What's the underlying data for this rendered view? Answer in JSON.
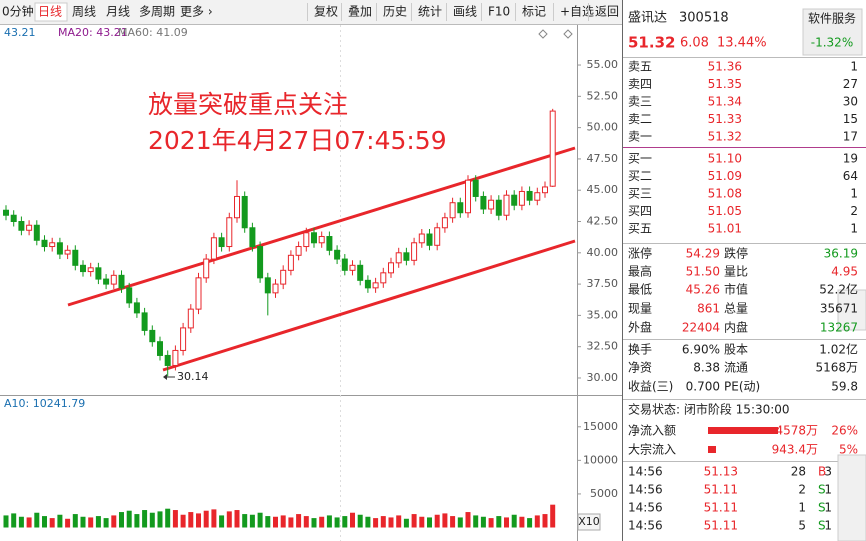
{
  "toolbar": {
    "left": [
      "0分钟",
      "日线",
      "周线",
      "月线",
      "多周期",
      "更多 ›"
    ],
    "right": [
      "复权",
      "叠加",
      "历史",
      "统计",
      "画线",
      "F10",
      "标记",
      "+自选",
      "返回"
    ]
  },
  "kline": {
    "ma_legend": [
      "43.21",
      "MA20: 43.21",
      "MA60: 41.09"
    ],
    "annotation": [
      "放量突破重点关注",
      "2021年4月27日07:45:59"
    ],
    "low_label": "30.14",
    "ylim": [
      28.88,
      56.6
    ],
    "yticks": [
      {
        "value": 55,
        "label": "55.00"
      },
      {
        "value": 52.5,
        "label": "52.50"
      },
      {
        "value": 50,
        "label": "50.00"
      },
      {
        "value": 47.5,
        "label": "47.50"
      },
      {
        "value": 45,
        "label": "45.00"
      },
      {
        "value": 42.5,
        "label": "42.50"
      },
      {
        "value": 40,
        "label": "40.00"
      },
      {
        "value": 37.5,
        "label": "37.50"
      },
      {
        "value": 35,
        "label": "35.00"
      },
      {
        "value": 32.5,
        "label": "32.50"
      },
      {
        "value": 30,
        "label": "30.00"
      }
    ],
    "candles": [
      [
        43.4,
        43.8,
        42.6,
        43.0
      ],
      [
        43.0,
        43.4,
        42.1,
        42.5
      ],
      [
        42.5,
        42.9,
        41.4,
        41.8
      ],
      [
        41.8,
        42.6,
        41.4,
        42.2
      ],
      [
        42.2,
        42.6,
        40.6,
        41.0
      ],
      [
        41.0,
        41.4,
        40.1,
        40.5
      ],
      [
        40.5,
        41.2,
        40.1,
        40.8
      ],
      [
        40.8,
        41.2,
        39.5,
        39.9
      ],
      [
        39.9,
        40.6,
        39.5,
        40.2
      ],
      [
        40.2,
        40.6,
        38.6,
        39.0
      ],
      [
        39.0,
        39.4,
        38.1,
        38.5
      ],
      [
        38.5,
        39.2,
        38.1,
        38.8
      ],
      [
        38.8,
        39.2,
        37.5,
        37.9
      ],
      [
        37.9,
        38.3,
        37.1,
        37.5
      ],
      [
        37.5,
        38.6,
        37.1,
        38.2
      ],
      [
        38.2,
        38.6,
        36.8,
        37.2
      ],
      [
        37.2,
        37.6,
        35.6,
        36.0
      ],
      [
        36.0,
        36.4,
        34.8,
        35.2
      ],
      [
        35.2,
        35.6,
        33.4,
        33.8
      ],
      [
        33.8,
        34.2,
        32.5,
        32.9
      ],
      [
        32.9,
        33.3,
        31.4,
        31.8
      ],
      [
        31.8,
        32.2,
        30.14,
        31.0
      ],
      [
        31.0,
        32.6,
        30.6,
        32.2
      ],
      [
        32.2,
        34.4,
        31.8,
        34.0
      ],
      [
        34.0,
        35.9,
        33.6,
        35.5
      ],
      [
        35.5,
        38.4,
        35.1,
        38.0
      ],
      [
        38.0,
        39.9,
        37.6,
        39.5
      ],
      [
        39.5,
        41.6,
        39.1,
        41.2
      ],
      [
        41.2,
        41.6,
        40.1,
        40.5
      ],
      [
        40.5,
        43.2,
        40.1,
        42.8
      ],
      [
        42.8,
        45.8,
        42.4,
        44.5
      ],
      [
        44.5,
        44.9,
        41.6,
        42.0
      ],
      [
        42.0,
        42.4,
        40.1,
        40.5
      ],
      [
        40.5,
        40.9,
        37.6,
        38.0
      ],
      [
        38.0,
        38.4,
        35.0,
        36.8
      ],
      [
        36.8,
        37.9,
        36.4,
        37.5
      ],
      [
        37.5,
        39.0,
        37.1,
        38.6
      ],
      [
        38.6,
        40.2,
        38.2,
        39.8
      ],
      [
        39.8,
        40.9,
        39.4,
        40.5
      ],
      [
        40.5,
        42.0,
        40.1,
        41.6
      ],
      [
        41.6,
        42.0,
        40.4,
        40.8
      ],
      [
        40.8,
        41.7,
        40.4,
        41.3
      ],
      [
        41.3,
        41.7,
        39.8,
        40.2
      ],
      [
        40.2,
        40.6,
        39.1,
        39.5
      ],
      [
        39.5,
        39.9,
        38.2,
        38.6
      ],
      [
        38.6,
        39.4,
        38.2,
        39.0
      ],
      [
        39.0,
        39.4,
        37.4,
        37.8
      ],
      [
        37.8,
        38.2,
        36.8,
        37.2
      ],
      [
        37.2,
        38.0,
        36.8,
        37.6
      ],
      [
        37.6,
        38.8,
        37.2,
        38.4
      ],
      [
        38.4,
        39.6,
        38.0,
        39.2
      ],
      [
        39.2,
        40.4,
        38.8,
        40.0
      ],
      [
        40.0,
        40.4,
        39.0,
        39.4
      ],
      [
        39.4,
        41.2,
        39.0,
        40.8
      ],
      [
        40.8,
        41.9,
        40.4,
        41.5
      ],
      [
        41.5,
        41.9,
        40.2,
        40.6
      ],
      [
        40.6,
        42.4,
        40.2,
        42.0
      ],
      [
        42.0,
        43.2,
        41.6,
        42.8
      ],
      [
        42.8,
        44.4,
        42.4,
        44.0
      ],
      [
        44.0,
        44.4,
        42.8,
        43.2
      ],
      [
        43.2,
        46.2,
        42.8,
        45.8
      ],
      [
        45.8,
        46.2,
        44.1,
        44.5
      ],
      [
        44.5,
        44.9,
        43.1,
        43.5
      ],
      [
        43.5,
        44.6,
        43.1,
        44.2
      ],
      [
        44.2,
        44.6,
        42.6,
        43.0
      ],
      [
        43.0,
        45.0,
        42.6,
        44.6
      ],
      [
        44.6,
        45.0,
        43.4,
        43.8
      ],
      [
        43.8,
        45.3,
        43.4,
        44.9
      ],
      [
        44.9,
        45.3,
        43.8,
        44.2
      ],
      [
        44.2,
        45.2,
        43.8,
        44.8
      ],
      [
        44.8,
        45.7,
        44.4,
        45.26
      ],
      [
        45.32,
        51.5,
        45.26,
        51.32
      ]
    ],
    "volume_legend": "A10: 10241.79",
    "vol_ylim": [
      0,
      17500
    ],
    "vol_yticks": [
      15000,
      10000,
      5000
    ],
    "vol_unit": "X10",
    "volumes": [
      1800,
      2100,
      1600,
      1500,
      2200,
      1700,
      1400,
      1900,
      1300,
      2000,
      1600,
      1500,
      1700,
      1400,
      1800,
      2300,
      2500,
      2000,
      2600,
      2200,
      2400,
      2800,
      2600,
      1900,
      2300,
      2100,
      2500,
      2700,
      1800,
      2400,
      2600,
      2000,
      1900,
      2200,
      1700,
      1600,
      1800,
      1500,
      2000,
      1700,
      1400,
      1600,
      1800,
      1500,
      1700,
      2200,
      1900,
      1600,
      1400,
      1700,
      1500,
      1800,
      1300,
      2000,
      1600,
      1500,
      1900,
      2100,
      1700,
      1500,
      2300,
      1800,
      1600,
      1400,
      1700,
      1500,
      1900,
      1600,
      1400,
      1800,
      2000,
      3400
    ]
  },
  "quote": {
    "name": "盛讯达",
    "code": "300518",
    "sector": "软件服务",
    "sector_change": "-1.32%",
    "price": "51.32",
    "change": "6.08",
    "change_pct": "13.44%",
    "sells": [
      [
        "卖五",
        "51.36",
        "1"
      ],
      [
        "卖四",
        "51.35",
        "27"
      ],
      [
        "卖三",
        "51.34",
        "30"
      ],
      [
        "卖二",
        "51.33",
        "15"
      ],
      [
        "卖一",
        "51.32",
        "17"
      ]
    ],
    "buys": [
      [
        "买一",
        "51.10",
        "19"
      ],
      [
        "买二",
        "51.09",
        "64"
      ],
      [
        "买三",
        "51.08",
        "1"
      ],
      [
        "买四",
        "51.05",
        "2"
      ],
      [
        "买五",
        "51.01",
        "1"
      ]
    ],
    "stats": [
      [
        "涨停",
        "54.29",
        "跌停",
        "36.19"
      ],
      [
        "最高",
        "51.50",
        "量比",
        "4.95"
      ],
      [
        "最低",
        "45.26",
        "市值",
        "52.2亿"
      ],
      [
        "现量",
        "861",
        "总量",
        "35671"
      ],
      [
        "外盘",
        "22404",
        "内盘",
        "13267"
      ],
      [
        "换手",
        "6.90%",
        "股本",
        "1.02亿"
      ],
      [
        "净资",
        "8.38",
        "流通",
        "5168万"
      ],
      [
        "收益(三)",
        "0.700",
        "PE(动)",
        "59.8"
      ]
    ],
    "status": "交易状态: 闭市阶段 15:30:00",
    "flows": [
      [
        "净流入额",
        "4578万",
        "26%"
      ],
      [
        "大宗流入",
        "943.4万",
        "5%"
      ]
    ],
    "trades": [
      [
        "14:56",
        "51.13",
        "28",
        "B",
        "3"
      ],
      [
        "14:56",
        "51.11",
        "2",
        "S",
        "1"
      ],
      [
        "14:56",
        "51.11",
        "1",
        "S",
        "1"
      ],
      [
        "14:56",
        "51.11",
        "5",
        "S",
        "1"
      ]
    ]
  }
}
